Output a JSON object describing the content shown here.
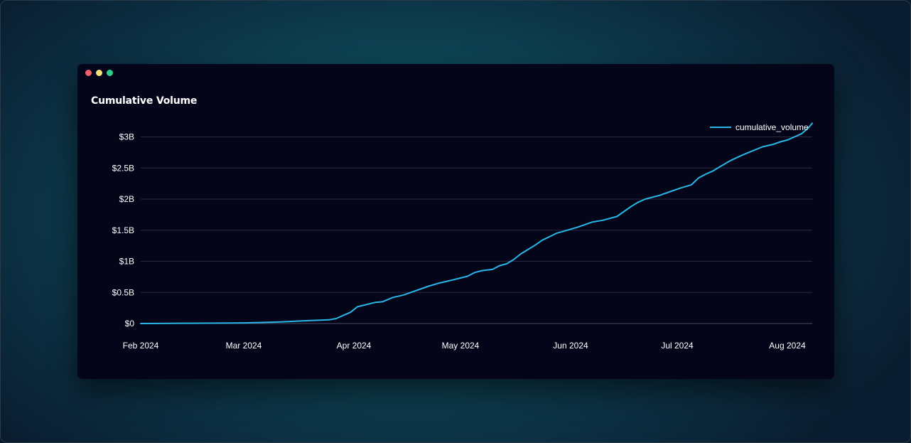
{
  "window": {
    "controls": [
      "close",
      "minimize",
      "maximize"
    ],
    "colors": {
      "close": "#f0606a",
      "minimize": "#f6e27a",
      "maximize": "#2fd08a"
    }
  },
  "chart_data": {
    "type": "line",
    "title": "Cumulative Volume",
    "xlabel": "",
    "ylabel": "",
    "grid": true,
    "legend_position": "top-right",
    "ylim": [
      0,
      3200000000
    ],
    "xlim": [
      "2024-02-01",
      "2024-08-08"
    ],
    "y_ticks": [
      {
        "value": 0,
        "label": "$0"
      },
      {
        "value": 500000000,
        "label": "$0.5B"
      },
      {
        "value": 1000000000,
        "label": "$1B"
      },
      {
        "value": 1500000000,
        "label": "$1.5B"
      },
      {
        "value": 2000000000,
        "label": "$2B"
      },
      {
        "value": 2500000000,
        "label": "$2.5B"
      },
      {
        "value": 3000000000,
        "label": "$3B"
      }
    ],
    "x_ticks": [
      {
        "date": "2024-02-01",
        "label": "Feb 2024"
      },
      {
        "date": "2024-03-01",
        "label": "Mar 2024"
      },
      {
        "date": "2024-04-01",
        "label": "Apr 2024"
      },
      {
        "date": "2024-05-01",
        "label": "May 2024"
      },
      {
        "date": "2024-06-01",
        "label": "Jun 2024"
      },
      {
        "date": "2024-07-01",
        "label": "Jul 2024"
      },
      {
        "date": "2024-08-01",
        "label": "Aug 2024"
      }
    ],
    "series": [
      {
        "name": "cumulative_volume",
        "color": "#29b6e6",
        "x": [
          "2024-02-01",
          "2024-02-15",
          "2024-03-01",
          "2024-03-08",
          "2024-03-13",
          "2024-03-18",
          "2024-03-25",
          "2024-03-27",
          "2024-03-29",
          "2024-03-31",
          "2024-04-02",
          "2024-04-07",
          "2024-04-09",
          "2024-04-12",
          "2024-04-15",
          "2024-04-22",
          "2024-04-25",
          "2024-04-28",
          "2024-05-03",
          "2024-05-05",
          "2024-05-07",
          "2024-05-10",
          "2024-05-12",
          "2024-05-14",
          "2024-05-16",
          "2024-05-18",
          "2024-05-20",
          "2024-05-22",
          "2024-05-24",
          "2024-05-28",
          "2024-05-31",
          "2024-06-03",
          "2024-06-07",
          "2024-06-10",
          "2024-06-14",
          "2024-06-16",
          "2024-06-18",
          "2024-06-20",
          "2024-06-22",
          "2024-06-24",
          "2024-06-26",
          "2024-06-29",
          "2024-07-02",
          "2024-07-05",
          "2024-07-07",
          "2024-07-09",
          "2024-07-11",
          "2024-07-13",
          "2024-07-16",
          "2024-07-19",
          "2024-07-22",
          "2024-07-25",
          "2024-07-28",
          "2024-07-30",
          "2024-08-01",
          "2024-08-03",
          "2024-08-05",
          "2024-08-07",
          "2024-08-08"
        ],
        "y": [
          0,
          5000000,
          10000000,
          20000000,
          30000000,
          45000000,
          60000000,
          80000000,
          130000000,
          180000000,
          270000000,
          340000000,
          350000000,
          420000000,
          460000000,
          600000000,
          650000000,
          690000000,
          760000000,
          820000000,
          850000000,
          870000000,
          930000000,
          960000000,
          1030000000,
          1120000000,
          1190000000,
          1260000000,
          1340000000,
          1450000000,
          1500000000,
          1550000000,
          1630000000,
          1660000000,
          1720000000,
          1800000000,
          1880000000,
          1950000000,
          2000000000,
          2030000000,
          2060000000,
          2120000000,
          2180000000,
          2230000000,
          2340000000,
          2400000000,
          2450000000,
          2520000000,
          2620000000,
          2700000000,
          2770000000,
          2840000000,
          2880000000,
          2920000000,
          2950000000,
          3000000000,
          3050000000,
          3150000000,
          3220000000
        ]
      }
    ]
  }
}
